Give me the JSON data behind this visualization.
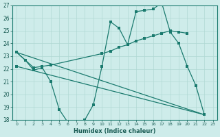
{
  "xlabel": "Humidex (Indice chaleur)",
  "xlim": [
    -0.5,
    23.5
  ],
  "ylim": [
    18,
    27
  ],
  "yticks": [
    18,
    19,
    20,
    21,
    22,
    23,
    24,
    25,
    26,
    27
  ],
  "xticks": [
    0,
    1,
    2,
    3,
    4,
    5,
    6,
    7,
    8,
    9,
    10,
    11,
    12,
    13,
    14,
    15,
    16,
    17,
    18,
    19,
    20,
    21,
    22,
    23
  ],
  "xtick_labels": [
    "0",
    "1",
    "2",
    "3",
    "4",
    "5",
    "6",
    "7",
    "8",
    "9",
    "10",
    "11",
    "12",
    "13",
    "14",
    "15",
    "16",
    "17",
    "18",
    "19",
    "20",
    "21",
    "22",
    "23"
  ],
  "bg_color": "#ceecea",
  "line_color": "#1a7a6e",
  "grid_color": "#b0d8d4",
  "line1_x": [
    0,
    1,
    2,
    3,
    4,
    5,
    6,
    7,
    8,
    9,
    10,
    11,
    12,
    13,
    14,
    15,
    16,
    17,
    18,
    19,
    20,
    21,
    22
  ],
  "line1_y": [
    23.3,
    22.7,
    21.9,
    22.1,
    21.0,
    18.8,
    17.8,
    17.8,
    18.0,
    19.2,
    22.2,
    25.7,
    25.2,
    23.9,
    26.5,
    26.6,
    26.7,
    27.2,
    24.9,
    24.0,
    22.2,
    20.7,
    18.4
  ],
  "line2_x": [
    0,
    1,
    2,
    3,
    4,
    10,
    11,
    12,
    13,
    14,
    15,
    16,
    17,
    18,
    19,
    20
  ],
  "line2_y": [
    23.3,
    22.7,
    22.1,
    22.2,
    22.3,
    23.2,
    23.4,
    23.7,
    23.9,
    24.2,
    24.4,
    24.6,
    24.8,
    25.0,
    24.9,
    24.8
  ],
  "line3_x": [
    0,
    22
  ],
  "line3_y": [
    23.3,
    18.4
  ],
  "line4_x": [
    0,
    22
  ],
  "line4_y": [
    22.2,
    18.4
  ]
}
